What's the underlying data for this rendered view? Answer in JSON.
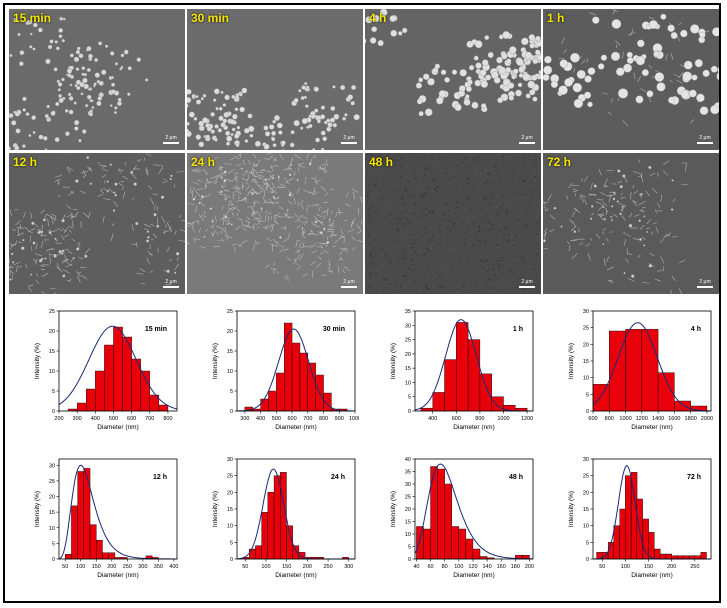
{
  "sem_panels": [
    {
      "label": "15 min",
      "scale": "2 μm"
    },
    {
      "label": "30 min",
      "scale": "2 μm"
    },
    {
      "label": "4 h",
      "scale": "2 μm"
    },
    {
      "label": "1 h",
      "scale": "2 μm"
    },
    {
      "label": "12 h",
      "scale": "2 μm"
    },
    {
      "label": "24 h",
      "scale": "2 μm"
    },
    {
      "label": "48 h",
      "scale": "2 μm"
    },
    {
      "label": "72 h",
      "scale": "2 μm"
    }
  ],
  "chart_data": [
    {
      "type": "bar",
      "title": "15 min",
      "xlabel": "Diameter (nm)",
      "ylabel": "Intensity (%)",
      "xlim": [
        200,
        850
      ],
      "ylim": [
        0,
        25
      ],
      "xticks": [
        200,
        300,
        400,
        500,
        600,
        700,
        800
      ],
      "yticks": [
        0,
        5,
        10,
        15,
        20,
        25
      ],
      "bin_width": 50,
      "x": [
        275,
        325,
        375,
        425,
        475,
        525,
        575,
        625,
        675,
        725,
        775
      ],
      "values": [
        0.5,
        2,
        5.5,
        10,
        16.5,
        21,
        18.5,
        13,
        10,
        4,
        1.5
      ],
      "fit": {
        "mu": 495,
        "sigma": 130,
        "peak": 21.2
      }
    },
    {
      "type": "bar",
      "title": "30 min",
      "xlabel": "Diameter (nm)",
      "ylabel": "Intensity (%)",
      "xlim": [
        250,
        1000
      ],
      "ylim": [
        0,
        25
      ],
      "xticks": [
        300,
        400,
        500,
        600,
        700,
        800,
        900,
        1000
      ],
      "yticks": [
        0,
        5,
        10,
        15,
        20,
        25
      ],
      "bin_width": 50,
      "x": [
        325,
        375,
        425,
        475,
        525,
        575,
        625,
        675,
        725,
        775,
        825,
        875,
        925
      ],
      "values": [
        1,
        0.5,
        3,
        5,
        9.5,
        22,
        17,
        14.5,
        12,
        9,
        4.5,
        0.5,
        0.5
      ],
      "fit": {
        "mu": 610,
        "sigma": 95,
        "peak": 20.5
      }
    },
    {
      "type": "bar",
      "title": "1 h",
      "xlabel": "Diameter (nm)",
      "ylabel": "Intensity (%)",
      "xlim": [
        250,
        1250
      ],
      "ylim": [
        0,
        35
      ],
      "xticks": [
        400,
        600,
        800,
        1000,
        1200
      ],
      "yticks": [
        0,
        5,
        10,
        15,
        20,
        25,
        30,
        35
      ],
      "bin_width": 100,
      "x": [
        350,
        450,
        550,
        650,
        750,
        850,
        950,
        1050,
        1150
      ],
      "values": [
        1,
        6.5,
        18,
        31,
        25,
        13,
        5,
        2,
        1
      ],
      "fit": {
        "mu": 640,
        "sigma": 130,
        "peak": 32
      }
    },
    {
      "type": "bar",
      "title": "4 h",
      "xlabel": "Diameter (nm)",
      "ylabel": "Intensity (%)",
      "xlim": [
        600,
        2050
      ],
      "ylim": [
        0,
        30
      ],
      "xticks": [
        600,
        800,
        1000,
        1200,
        1400,
        1600,
        1800,
        2000
      ],
      "yticks": [
        0,
        5,
        10,
        15,
        20,
        25,
        30
      ],
      "bin_width": 200,
      "x": [
        700,
        900,
        1100,
        1300,
        1500,
        1700,
        1900
      ],
      "values": [
        8,
        24,
        24.5,
        24.5,
        11.5,
        3,
        1.5
      ],
      "fit": {
        "mu": 1150,
        "sigma": 240,
        "peak": 26.5
      }
    },
    {
      "type": "bar",
      "title": "12 h",
      "xlabel": "Diameter (nm)",
      "ylabel": "Intensity (%)",
      "xlim": [
        30,
        410
      ],
      "ylim": [
        0,
        32
      ],
      "xticks": [
        50,
        100,
        150,
        200,
        250,
        300,
        350,
        400
      ],
      "yticks": [
        0,
        5,
        10,
        15,
        20,
        25,
        30
      ],
      "bin_width": 20,
      "x": [
        60,
        80,
        100,
        120,
        140,
        160,
        180,
        200,
        220,
        240,
        260,
        280,
        300,
        320,
        340
      ],
      "values": [
        1.5,
        17,
        28,
        29,
        11,
        6,
        2,
        2,
        0.5,
        0.5,
        0,
        0,
        0,
        1,
        0.5
      ],
      "fit": {
        "mu": 100,
        "sigma": 0.35,
        "peak": 30,
        "lognormal": true
      }
    },
    {
      "type": "bar",
      "title": "24 h",
      "xlabel": "Diameter (nm)",
      "ylabel": "Intensity (%)",
      "xlim": [
        30,
        315
      ],
      "ylim": [
        0,
        30
      ],
      "xticks": [
        50,
        100,
        150,
        200,
        250,
        300
      ],
      "yticks": [
        0,
        5,
        10,
        15,
        20,
        25,
        30
      ],
      "bin_width": 15,
      "x": [
        52,
        67,
        82,
        97,
        112,
        127,
        142,
        157,
        172,
        187,
        202,
        217,
        232,
        247,
        262,
        277,
        292
      ],
      "values": [
        0.5,
        3,
        4,
        14,
        20,
        25,
        26,
        10,
        4,
        2,
        0.5,
        0.5,
        0.5,
        0,
        0,
        0,
        0.5
      ],
      "fit": {
        "mu": 118,
        "sigma": 25,
        "peak": 27
      }
    },
    {
      "type": "bar",
      "title": "48 h",
      "xlabel": "Diameter (nm)",
      "ylabel": "Intensity (%)",
      "xlim": [
        38,
        205
      ],
      "ylim": [
        0,
        40
      ],
      "xticks": [
        40,
        60,
        80,
        100,
        120,
        140,
        160,
        180,
        200
      ],
      "yticks": [
        0,
        5,
        10,
        15,
        20,
        25,
        30,
        35,
        40
      ],
      "bin_width": 10,
      "x": [
        45,
        55,
        65,
        75,
        85,
        95,
        105,
        115,
        125,
        135,
        145,
        155,
        165,
        175,
        185,
        195
      ],
      "values": [
        13,
        12,
        37,
        36,
        30,
        13,
        12,
        8,
        4,
        1,
        0.5,
        0,
        0,
        0,
        1.5,
        1.5
      ],
      "fit": {
        "mu": 74,
        "sigma": 0.28,
        "peak": 38,
        "lognormal": true
      }
    },
    {
      "type": "bar",
      "title": "72 h",
      "xlabel": "Diameter (nm)",
      "ylabel": "Intensity (%)",
      "xlim": [
        30,
        285
      ],
      "ylim": [
        0,
        30
      ],
      "xticks": [
        50,
        100,
        150,
        200,
        250
      ],
      "yticks": [
        0,
        5,
        10,
        15,
        20,
        25,
        30
      ],
      "bin_width": 12.5,
      "x": [
        44,
        56,
        69,
        81,
        94,
        106,
        119,
        131,
        144,
        156,
        169,
        181,
        194,
        206,
        219,
        231,
        244,
        256,
        269
      ],
      "values": [
        2,
        2,
        5,
        10,
        15,
        25,
        26,
        18,
        12,
        8,
        3,
        1.5,
        1.5,
        1,
        1,
        1,
        1,
        1,
        2
      ],
      "fit": {
        "mu": 103,
        "sigma": 18,
        "peak": 28
      }
    }
  ]
}
